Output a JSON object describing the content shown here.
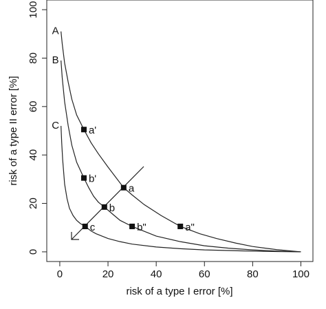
{
  "chart_data": {
    "type": "line",
    "xlabel": "risk of a type I error  [%]",
    "ylabel": "risk of a type II error  [%]",
    "xlim": [
      -5.4,
      105
    ],
    "ylim": [
      -4,
      104
    ],
    "xticks": [
      0,
      20,
      40,
      60,
      80,
      100
    ],
    "yticks": [
      0,
      20,
      40,
      60,
      80,
      100
    ],
    "series": [
      {
        "name": "A",
        "color": "#222222",
        "x": [
          0.5,
          1,
          2,
          3.5,
          5,
          7,
          10,
          13,
          16,
          20,
          26.5,
          30,
          35,
          42,
          50,
          58,
          65,
          73,
          80,
          90,
          100
        ],
        "values": [
          91,
          86,
          78,
          70,
          63,
          56.5,
          50.5,
          45,
          40.5,
          35,
          26.5,
          23.5,
          19.5,
          15,
          10.5,
          7.5,
          5.5,
          3.6,
          2.2,
          0.9,
          0
        ]
      },
      {
        "name": "B",
        "color": "#222222",
        "x": [
          0.5,
          1,
          2,
          3.5,
          5,
          7,
          10,
          12,
          14,
          16,
          18.5,
          22,
          25,
          30,
          35,
          40,
          50,
          60,
          70,
          80,
          90,
          100
        ],
        "values": [
          79,
          72,
          62,
          52,
          44,
          37,
          30.5,
          26.5,
          23,
          20.5,
          18.5,
          15.5,
          13,
          10.5,
          8.5,
          6.5,
          4.2,
          2.5,
          1.5,
          0.8,
          0.3,
          0
        ]
      },
      {
        "name": "C",
        "color": "#222222",
        "x": [
          0.5,
          0.8,
          1.2,
          2,
          3,
          4,
          5.5,
          7,
          8.5,
          10.5,
          13,
          15,
          20,
          25,
          30,
          40,
          50,
          60,
          75,
          90,
          100
        ],
        "values": [
          52,
          45,
          38,
          28,
          22,
          18,
          15,
          13,
          11.7,
          10.5,
          8.6,
          7.5,
          5.5,
          4.2,
          3.2,
          2,
          1.3,
          0.8,
          0.4,
          0.1,
          0
        ]
      }
    ],
    "points": [
      {
        "label": "a'",
        "x": 10,
        "y": 50.5
      },
      {
        "label": "a",
        "x": 26.5,
        "y": 26.5
      },
      {
        "label": "a\"",
        "x": 50,
        "y": 10.5
      },
      {
        "label": "b'",
        "x": 10,
        "y": 30.5
      },
      {
        "label": "b",
        "x": 18.5,
        "y": 18.5
      },
      {
        "label": "b\"",
        "x": 30,
        "y": 10.5
      },
      {
        "label": "c",
        "x": 10.5,
        "y": 10.5
      }
    ]
  }
}
